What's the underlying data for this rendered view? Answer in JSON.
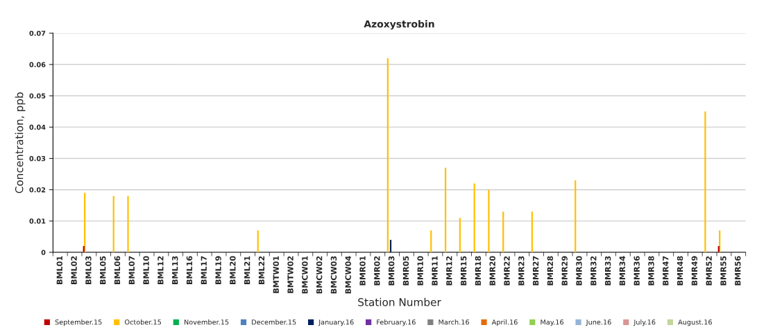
{
  "chart_data": {
    "type": "bar",
    "title": "Azoxystrobin",
    "xlabel": "Station Number",
    "ylabel": "Concentration, ppb",
    "categories": [
      "BML01",
      "BML02",
      "BML03",
      "BML05",
      "BML06",
      "BML07",
      "BML10",
      "BML12",
      "BML13",
      "BML16",
      "BML17",
      "BML19",
      "BML20",
      "BML21",
      "BML22",
      "BMTW01",
      "BMTW02",
      "BMCW01",
      "BMCW02",
      "BMCW03",
      "BMCW04",
      "BMR01",
      "BMR02",
      "BMR03",
      "BMR05",
      "BMR10",
      "BMR11",
      "BMR12",
      "BMR15",
      "BMR18",
      "BMR20",
      "BMR22",
      "BMR23",
      "BMR27",
      "BMR28",
      "BMR29",
      "BMR30",
      "BMR32",
      "BMR33",
      "BMR34",
      "BMR36",
      "BMR38",
      "BMR47",
      "BMR48",
      "BMR49",
      "BMR52",
      "BMR55",
      "BMR56"
    ],
    "series": [
      {
        "name": "September.15",
        "color": "#c00000",
        "values": [
          null,
          null,
          0.002,
          null,
          null,
          null,
          null,
          null,
          null,
          null,
          null,
          null,
          null,
          null,
          null,
          null,
          null,
          null,
          null,
          null,
          null,
          null,
          null,
          null,
          null,
          null,
          null,
          null,
          null,
          null,
          null,
          null,
          null,
          null,
          null,
          null,
          null,
          null,
          null,
          null,
          null,
          null,
          null,
          null,
          null,
          null,
          0.002,
          null
        ]
      },
      {
        "name": "October.15",
        "color": "#ffc000",
        "values": [
          null,
          null,
          0.019,
          null,
          0.018,
          0.018,
          null,
          null,
          null,
          null,
          null,
          null,
          null,
          null,
          0.007,
          null,
          null,
          null,
          null,
          null,
          null,
          null,
          null,
          0.062,
          null,
          null,
          0.007,
          0.027,
          0.011,
          0.022,
          0.02,
          0.013,
          null,
          0.013,
          null,
          null,
          0.023,
          null,
          null,
          null,
          null,
          null,
          null,
          null,
          null,
          0.045,
          0.007,
          null
        ]
      },
      {
        "name": "November.15",
        "color": "#00b050",
        "values": [
          null,
          null,
          null,
          null,
          null,
          null,
          null,
          null,
          null,
          null,
          null,
          null,
          null,
          null,
          null,
          null,
          null,
          null,
          null,
          null,
          null,
          null,
          null,
          null,
          null,
          null,
          null,
          null,
          null,
          null,
          null,
          null,
          null,
          null,
          null,
          null,
          null,
          null,
          null,
          null,
          null,
          null,
          null,
          null,
          null,
          null,
          null,
          null
        ]
      },
      {
        "name": "December.15",
        "color": "#4f81bd",
        "values": [
          null,
          null,
          null,
          null,
          null,
          null,
          null,
          null,
          null,
          null,
          null,
          null,
          null,
          null,
          null,
          null,
          null,
          null,
          null,
          null,
          null,
          null,
          null,
          null,
          null,
          null,
          null,
          null,
          null,
          null,
          null,
          null,
          null,
          null,
          null,
          null,
          null,
          null,
          null,
          null,
          null,
          null,
          null,
          null,
          null,
          null,
          null,
          null
        ]
      },
      {
        "name": "January.16",
        "color": "#002060",
        "values": [
          null,
          null,
          null,
          null,
          null,
          null,
          null,
          null,
          null,
          null,
          null,
          null,
          null,
          null,
          null,
          null,
          null,
          null,
          null,
          null,
          null,
          null,
          null,
          0.004,
          null,
          null,
          null,
          null,
          null,
          null,
          null,
          null,
          null,
          null,
          null,
          null,
          null,
          null,
          null,
          null,
          null,
          null,
          null,
          null,
          null,
          null,
          null,
          null
        ]
      },
      {
        "name": "February.16",
        "color": "#7030a0",
        "values": [
          null,
          null,
          null,
          null,
          null,
          null,
          null,
          null,
          null,
          null,
          null,
          null,
          null,
          null,
          null,
          null,
          null,
          null,
          null,
          null,
          null,
          null,
          null,
          null,
          null,
          null,
          null,
          null,
          null,
          null,
          null,
          null,
          null,
          null,
          null,
          null,
          null,
          null,
          null,
          null,
          null,
          null,
          null,
          null,
          null,
          null,
          null,
          null
        ]
      },
      {
        "name": "March.16",
        "color": "#808080",
        "values": [
          null,
          null,
          null,
          null,
          null,
          null,
          null,
          null,
          null,
          null,
          null,
          null,
          null,
          null,
          null,
          null,
          null,
          null,
          null,
          null,
          null,
          null,
          null,
          null,
          null,
          null,
          null,
          null,
          null,
          null,
          null,
          null,
          null,
          null,
          null,
          null,
          null,
          null,
          null,
          null,
          null,
          null,
          null,
          null,
          null,
          null,
          null,
          null
        ]
      },
      {
        "name": "April.16",
        "color": "#e46c0a",
        "values": [
          null,
          null,
          null,
          null,
          null,
          null,
          null,
          null,
          null,
          null,
          null,
          null,
          null,
          null,
          null,
          null,
          null,
          null,
          null,
          null,
          null,
          null,
          null,
          null,
          null,
          null,
          null,
          null,
          null,
          null,
          null,
          null,
          null,
          null,
          null,
          null,
          null,
          null,
          null,
          null,
          null,
          null,
          null,
          null,
          null,
          null,
          null,
          null
        ]
      },
      {
        "name": "May.16",
        "color": "#92d050",
        "values": [
          null,
          null,
          null,
          null,
          null,
          null,
          null,
          null,
          null,
          null,
          null,
          null,
          null,
          null,
          null,
          null,
          null,
          null,
          null,
          null,
          null,
          null,
          null,
          null,
          null,
          null,
          null,
          null,
          null,
          null,
          null,
          null,
          null,
          null,
          null,
          null,
          null,
          null,
          null,
          null,
          null,
          null,
          null,
          null,
          null,
          null,
          null,
          null
        ]
      },
      {
        "name": "June.16",
        "color": "#95b3d7",
        "values": [
          null,
          null,
          null,
          null,
          null,
          null,
          null,
          null,
          null,
          null,
          null,
          null,
          null,
          null,
          null,
          null,
          null,
          null,
          null,
          null,
          null,
          null,
          null,
          null,
          null,
          null,
          null,
          null,
          null,
          null,
          null,
          null,
          null,
          null,
          null,
          null,
          null,
          null,
          null,
          null,
          null,
          null,
          null,
          null,
          null,
          null,
          null,
          null
        ]
      },
      {
        "name": "July.16",
        "color": "#d99694",
        "values": [
          null,
          null,
          null,
          null,
          null,
          null,
          null,
          null,
          null,
          null,
          null,
          null,
          null,
          null,
          null,
          null,
          null,
          null,
          null,
          null,
          null,
          null,
          null,
          null,
          null,
          null,
          null,
          null,
          null,
          null,
          null,
          null,
          null,
          null,
          null,
          null,
          null,
          null,
          null,
          null,
          null,
          null,
          null,
          null,
          null,
          null,
          null,
          null
        ]
      },
      {
        "name": "August.16",
        "color": "#c3d69b",
        "values": [
          null,
          null,
          null,
          null,
          null,
          null,
          null,
          null,
          null,
          null,
          null,
          null,
          null,
          null,
          null,
          null,
          null,
          null,
          null,
          null,
          null,
          null,
          null,
          null,
          null,
          null,
          null,
          null,
          null,
          null,
          null,
          null,
          null,
          null,
          null,
          null,
          null,
          null,
          null,
          null,
          null,
          null,
          null,
          null,
          null,
          null,
          null,
          null
        ]
      }
    ],
    "ylim": [
      0,
      0.07
    ],
    "yticks": [
      0,
      0.01,
      0.02,
      0.03,
      0.04,
      0.05,
      0.06,
      0.07
    ],
    "grid": "y",
    "legend": "bottom"
  }
}
